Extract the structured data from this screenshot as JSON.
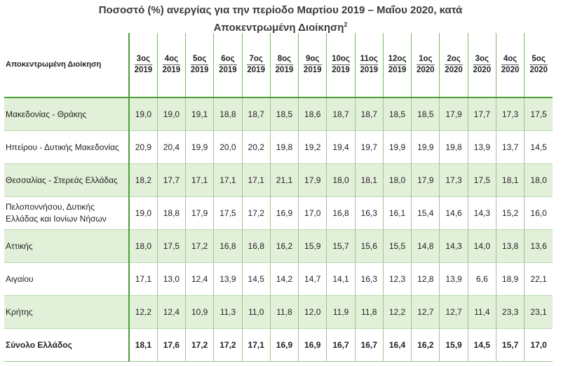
{
  "title_line1": "Ποσοστό (%) ανεργίας για την περίοδο Μαρτίου 2019 – Μαΐου 2020, κατά",
  "title_line2": "Αποκεντρωμένη Διοίκηση",
  "title_footnote": "2",
  "corner_header": "Αποκεντρωμένη Διοίκηση",
  "periods": [
    {
      "label": "3ος",
      "year": "2019"
    },
    {
      "label": "4ος",
      "year": "2019"
    },
    {
      "label": "5ος",
      "year": "2019"
    },
    {
      "label": "6ος",
      "year": "2019"
    },
    {
      "label": "7ος",
      "year": "2019"
    },
    {
      "label": "8ος",
      "year": "2019"
    },
    {
      "label": "9ος",
      "year": "2019"
    },
    {
      "label": "10ος",
      "year": "2019"
    },
    {
      "label": "11ος",
      "year": "2019"
    },
    {
      "label": "12ος",
      "year": "2019"
    },
    {
      "label": "1ος",
      "year": "2020"
    },
    {
      "label": "2ος",
      "year": "2020"
    },
    {
      "label": "3ος",
      "year": "2020"
    },
    {
      "label": "4ος",
      "year": "2020"
    },
    {
      "label": "5ος",
      "year": "2020"
    }
  ],
  "rows": [
    {
      "name": "Μακεδονίας - Θράκης",
      "values": [
        "19,0",
        "19,0",
        "19,1",
        "18,8",
        "18,7",
        "18,5",
        "18,6",
        "18,7",
        "18,7",
        "18,5",
        "18,5",
        "17,9",
        "17,7",
        "17,3",
        "17,5"
      ]
    },
    {
      "name": "Ηπείρου - Δυτικής Μακεδονίας",
      "values": [
        "20,9",
        "20,4",
        "19,9",
        "20,0",
        "20,2",
        "19,8",
        "19,2",
        "19,4",
        "19,7",
        "19,9",
        "19,9",
        "19,8",
        "13,9",
        "13,7",
        "14,5"
      ]
    },
    {
      "name": "Θεσσαλίας - Στερεάς Ελλάδας",
      "values": [
        "18,2",
        "17,7",
        "17,1",
        "17,1",
        "17,1",
        "21,1",
        "17,9",
        "18,0",
        "18,1",
        "18,0",
        "17,9",
        "17,3",
        "17,5",
        "18,1",
        "18,0"
      ]
    },
    {
      "name": "Πελοποννήσου, Δυτικής Ελλάδας και Ιονίων Νήσων",
      "values": [
        "19,0",
        "18,8",
        "17,9",
        "17,5",
        "17,2",
        "16,9",
        "17,0",
        "16,8",
        "16,3",
        "16,1",
        "15,4",
        "14,6",
        "14,3",
        "15,2",
        "16,0"
      ]
    },
    {
      "name": "Αττικής",
      "values": [
        "18,0",
        "17,5",
        "17,2",
        "16,8",
        "16,8",
        "16,2",
        "15,9",
        "15,7",
        "15,6",
        "15,5",
        "14,8",
        "14,3",
        "14,0",
        "13,8",
        "13,6"
      ]
    },
    {
      "name": "Αιγαίου",
      "values": [
        "17,1",
        "13,0",
        "12,4",
        "13,9",
        "14,5",
        "14,2",
        "14,7",
        "14,1",
        "16,3",
        "12,3",
        "12,8",
        "13,9",
        "6,6",
        "18,9",
        "22,1"
      ]
    },
    {
      "name": "Κρήτης",
      "values": [
        "12,2",
        "12,4",
        "10,9",
        "11,3",
        "11,0",
        "11,8",
        "12,0",
        "11,9",
        "11,8",
        "12,2",
        "12,7",
        "12,7",
        "11,4",
        "23,3",
        "23,1"
      ]
    },
    {
      "name": "Σύνολο Ελλάδος",
      "values": [
        "18,1",
        "17,6",
        "17,2",
        "17,2",
        "17,1",
        "16,9",
        "16,9",
        "16,7",
        "16,7",
        "16,4",
        "16,2",
        "15,9",
        "14,5",
        "15,7",
        "17,0"
      ]
    }
  ]
}
